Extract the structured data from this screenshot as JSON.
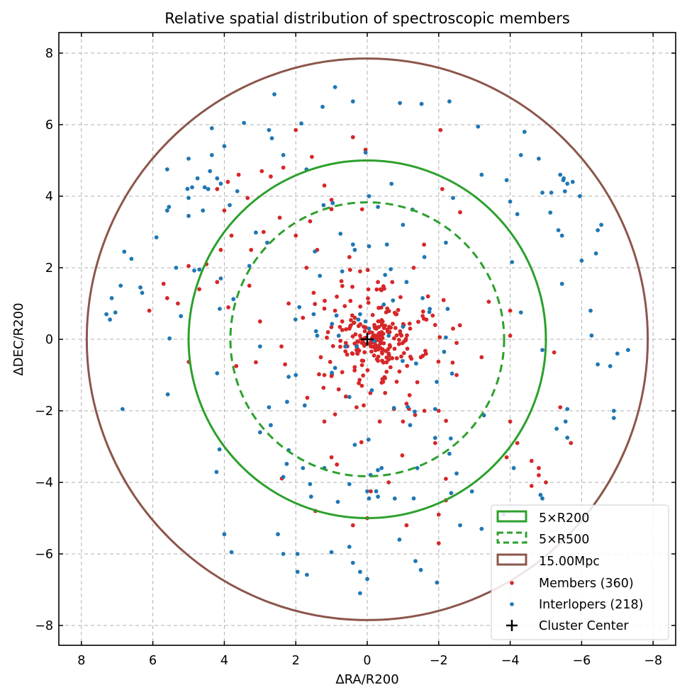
{
  "chart_data": {
    "type": "scatter",
    "title": "Relative spatial distribution of spectroscopic members",
    "xlabel": "ΔRA/R200",
    "ylabel": "ΔDEC/R200",
    "xlim": [
      8.5,
      -8.5
    ],
    "ylim": [
      -8.5,
      8.6
    ],
    "x_ticks": [
      8,
      6,
      4,
      2,
      0,
      -2,
      -4,
      -6,
      -8
    ],
    "x_tick_labels": [
      "8",
      "6",
      "4",
      "2",
      "0",
      "−2",
      "−4",
      "−6",
      "−8"
    ],
    "y_ticks": [
      8,
      6,
      4,
      2,
      0,
      -2,
      -4,
      -6,
      -8
    ],
    "y_tick_labels": [
      "8",
      "6",
      "4",
      "2",
      "0",
      "−2",
      "−4",
      "−6",
      "−8"
    ],
    "grid": true,
    "legend_position": "bottom-right",
    "circles": [
      {
        "label": "5×R200",
        "radius": 5.0,
        "color": "#2ca02c",
        "style": "solid"
      },
      {
        "label": "5×R500",
        "radius": 3.83,
        "color": "#2ca02c",
        "style": "dashed"
      },
      {
        "label": "15.00Mpc",
        "radius": 7.85,
        "color": "#8c564b",
        "style": "solid"
      }
    ],
    "center": {
      "label": "Cluster Center",
      "x": 0,
      "y": 0,
      "marker": "+",
      "color": "#000000"
    },
    "series": [
      {
        "name": "Members (360)",
        "count": 360,
        "color": "#d62728",
        "points": [
          [
            2.0,
            5.85
          ],
          [
            -2.05,
            5.85
          ],
          [
            -2.1,
            4.2
          ],
          [
            -2.6,
            3.55
          ],
          [
            0.05,
            5.3
          ],
          [
            0.4,
            5.65
          ],
          [
            1.55,
            5.1
          ],
          [
            3.6,
            4.6
          ],
          [
            3.9,
            4.4
          ],
          [
            4.2,
            4.2
          ],
          [
            2.7,
            4.55
          ],
          [
            2.35,
            4.8
          ],
          [
            2.95,
            4.7
          ],
          [
            1.2,
            4.3
          ],
          [
            1.0,
            3.9
          ],
          [
            3.35,
            3.95
          ],
          [
            4.0,
            3.6
          ],
          [
            2.45,
            3.4
          ],
          [
            2.9,
            3.0
          ],
          [
            3.25,
            2.5
          ],
          [
            3.8,
            2.9
          ],
          [
            4.1,
            2.5
          ],
          [
            4.5,
            2.1
          ],
          [
            5.0,
            2.05
          ],
          [
            5.6,
            1.15
          ],
          [
            6.1,
            0.8
          ],
          [
            5.3,
            1.0
          ],
          [
            4.7,
            1.4
          ],
          [
            4.2,
            1.6
          ],
          [
            5.7,
            1.55
          ],
          [
            2.3,
            -0.7
          ],
          [
            3.0,
            0.5
          ],
          [
            3.3,
            1.5
          ],
          [
            2.2,
            1.0
          ],
          [
            1.8,
            0.6
          ],
          [
            2.4,
            -0.2
          ],
          [
            -4.0,
            0.8
          ],
          [
            -3.4,
            1.05
          ],
          [
            -4.0,
            0.1
          ],
          [
            -3.2,
            -0.5
          ],
          [
            -3.9,
            -3.3
          ],
          [
            -4.0,
            -2.3
          ],
          [
            -4.6,
            -3.4
          ],
          [
            -4.8,
            -3.6
          ],
          [
            -5.0,
            -4.0
          ],
          [
            -4.6,
            -4.1
          ],
          [
            -5.4,
            -1.9
          ],
          [
            -4.2,
            -2.9
          ],
          [
            -4.8,
            -3.8
          ],
          [
            -5.7,
            -2.9
          ],
          [
            -2.2,
            -4.5
          ],
          [
            -2.0,
            -4.9
          ],
          [
            -2.0,
            -5.7
          ],
          [
            -2.0,
            -2.0
          ],
          [
            -0.35,
            -2.3
          ],
          [
            -0.75,
            -1.95
          ],
          [
            -1.1,
            -1.8
          ],
          [
            0.6,
            -1.6
          ],
          [
            1.3,
            -0.5
          ],
          [
            1.45,
            -4.8
          ],
          [
            -0.1,
            -4.25
          ],
          [
            -0.6,
            -4.0
          ],
          [
            -1.9,
            -2.9
          ],
          [
            -2.5,
            -1.0
          ],
          [
            -2.2,
            -3.9
          ],
          [
            0.4,
            -5.2
          ],
          [
            -1.1,
            -5.2
          ],
          [
            0.0,
            -5.0
          ],
          [
            0.85,
            -3.5
          ],
          [
            1.0,
            -3.3
          ],
          [
            0.15,
            -1.3
          ],
          [
            -0.3,
            -0.6
          ],
          [
            0.5,
            0.3
          ],
          [
            0.2,
            0.1
          ],
          [
            -0.1,
            -0.2
          ],
          [
            0.3,
            -0.3
          ],
          [
            -0.4,
            0.2
          ],
          [
            0.6,
            -0.1
          ],
          [
            0.1,
            0.35
          ],
          [
            -0.2,
            0.4
          ],
          [
            0.35,
            0.6
          ],
          [
            -0.6,
            -0.4
          ],
          [
            0.7,
            0.5
          ],
          [
            0.9,
            0.8
          ],
          [
            1.1,
            0.2
          ],
          [
            -0.8,
            0.7
          ],
          [
            -0.9,
            -0.9
          ],
          [
            1.2,
            -1.0
          ],
          [
            0.8,
            -1.4
          ],
          [
            -1.2,
            0.3
          ],
          [
            1.5,
            1.3
          ],
          [
            -1.5,
            -0.5
          ],
          [
            1.7,
            2.0
          ],
          [
            -0.7,
            1.6
          ],
          [
            0.2,
            1.9
          ],
          [
            -0.3,
            1.6
          ],
          [
            1.4,
            2.5
          ],
          [
            -1.3,
            2.0
          ],
          [
            0.5,
            2.3
          ],
          [
            2.0,
            2.9
          ],
          [
            1.6,
            3.3
          ],
          [
            -1.7,
            1.2
          ],
          [
            -1.9,
            0.4
          ],
          [
            -1.0,
            -2.3
          ],
          [
            0.9,
            -2.1
          ],
          [
            1.2,
            -2.3
          ],
          [
            0.3,
            -1.9
          ],
          [
            -0.5,
            -1.5
          ],
          [
            -1.4,
            -1.2
          ],
          [
            -1.6,
            -2.0
          ],
          [
            -2.4,
            0.3
          ],
          [
            -2.5,
            -0.1
          ]
        ]
      },
      {
        "name": "Interlopers (218)",
        "count": 218,
        "color": "#1f77b4",
        "points": [
          [
            0.9,
            7.05
          ],
          [
            2.6,
            6.85
          ],
          [
            1.25,
            6.5
          ],
          [
            0.4,
            6.65
          ],
          [
            -2.3,
            6.65
          ],
          [
            4.35,
            5.9
          ],
          [
            3.45,
            6.05
          ],
          [
            2.75,
            5.85
          ],
          [
            4.0,
            5.4
          ],
          [
            4.35,
            5.15
          ],
          [
            5.0,
            5.05
          ],
          [
            5.6,
            4.75
          ],
          [
            2.35,
            5.15
          ],
          [
            1.7,
            4.75
          ],
          [
            -4.4,
            5.8
          ],
          [
            -4.3,
            5.15
          ],
          [
            -4.8,
            5.05
          ],
          [
            -5.4,
            4.6
          ],
          [
            -5.5,
            4.5
          ],
          [
            -5.6,
            4.35
          ],
          [
            -5.75,
            4.4
          ],
          [
            -5.95,
            4.0
          ],
          [
            -3.2,
            4.6
          ],
          [
            -3.9,
            4.45
          ],
          [
            -4.0,
            3.85
          ],
          [
            -4.2,
            3.5
          ],
          [
            -2.4,
            3.95
          ],
          [
            6.9,
            1.5
          ],
          [
            7.2,
            0.55
          ],
          [
            7.3,
            0.7
          ],
          [
            7.15,
            1.15
          ],
          [
            7.05,
            0.75
          ],
          [
            6.8,
            2.45
          ],
          [
            6.6,
            2.25
          ],
          [
            6.35,
            1.45
          ],
          [
            6.3,
            1.3
          ],
          [
            5.9,
            2.85
          ],
          [
            5.6,
            3.6
          ],
          [
            5.55,
            3.7
          ],
          [
            5.0,
            3.45
          ],
          [
            5.0,
            3.95
          ],
          [
            4.6,
            3.6
          ],
          [
            4.75,
            4.5
          ],
          [
            4.9,
            4.25
          ],
          [
            4.55,
            4.25
          ],
          [
            4.45,
            4.2
          ],
          [
            4.2,
            4.5
          ],
          [
            4.4,
            4.7
          ],
          [
            4.1,
            4.35
          ],
          [
            3.85,
            3.75
          ],
          [
            5.35,
            2.0
          ],
          [
            4.7,
            1.95
          ],
          [
            4.1,
            1.7
          ],
          [
            2.8,
            2.7
          ],
          [
            3.3,
            2.05
          ],
          [
            6.85,
            -1.95
          ],
          [
            4.2,
            -0.95
          ],
          [
            3.0,
            -0.2
          ],
          [
            2.2,
            -1.05
          ],
          [
            1.75,
            -1.85
          ],
          [
            2.75,
            -1.9
          ],
          [
            3.0,
            -2.6
          ],
          [
            2.7,
            -2.4
          ],
          [
            2.2,
            -3.1
          ],
          [
            1.8,
            -3.6
          ],
          [
            1.6,
            -4.05
          ],
          [
            2.35,
            -3.85
          ],
          [
            1.2,
            -3.6
          ],
          [
            0.35,
            -2.95
          ],
          [
            -0.4,
            -3.6
          ],
          [
            -1.2,
            -2.4
          ],
          [
            -1.9,
            -1.95
          ],
          [
            -2.3,
            -3.2
          ],
          [
            -1.4,
            -3.6
          ],
          [
            -1.3,
            -4.45
          ],
          [
            -0.05,
            -4.45
          ],
          [
            0.0,
            -4.25
          ],
          [
            0.5,
            -4.05
          ],
          [
            -0.3,
            -4.4
          ],
          [
            -0.25,
            -4.25
          ],
          [
            4.0,
            -5.45
          ],
          [
            3.8,
            -5.95
          ],
          [
            2.5,
            -5.45
          ],
          [
            2.35,
            -6.0
          ],
          [
            1.95,
            -6.0
          ],
          [
            1.95,
            -6.5
          ],
          [
            1.0,
            -5.95
          ],
          [
            0.5,
            -5.8
          ],
          [
            0.2,
            -6.5
          ],
          [
            0.0,
            -6.7
          ],
          [
            0.4,
            -6.25
          ],
          [
            0.2,
            -7.1
          ],
          [
            -0.9,
            -5.6
          ],
          [
            -1.35,
            -6.2
          ],
          [
            -1.5,
            -6.45
          ],
          [
            -1.95,
            -6.8
          ],
          [
            -2.35,
            -4.3
          ],
          [
            -2.5,
            -3.75
          ],
          [
            -2.6,
            -5.2
          ],
          [
            -3.2,
            -5.3
          ],
          [
            -4.1,
            -3.6
          ],
          [
            -4.85,
            -4.35
          ],
          [
            -4.9,
            -4.45
          ],
          [
            -5.3,
            -2.5
          ],
          [
            -5.55,
            -2.3
          ],
          [
            -5.6,
            -1.95
          ],
          [
            -5.6,
            -2.75
          ],
          [
            -6.45,
            -0.7
          ],
          [
            -6.8,
            -0.75
          ],
          [
            -6.9,
            -2.0
          ],
          [
            -6.9,
            -2.2
          ],
          [
            -7.0,
            -0.4
          ],
          [
            -7.3,
            -0.3
          ],
          [
            -6.25,
            0.8
          ],
          [
            -6.0,
            2.2
          ],
          [
            -6.4,
            2.4
          ],
          [
            -6.45,
            3.05
          ],
          [
            -6.55,
            3.2
          ],
          [
            -5.35,
            3.05
          ],
          [
            -5.45,
            2.9
          ],
          [
            -5.45,
            1.55
          ],
          [
            -4.9,
            -0.3
          ],
          [
            -4.3,
            0.75
          ],
          [
            -4.9,
            4.1
          ],
          [
            -5.15,
            4.1
          ],
          [
            -2.2,
            2.7
          ],
          [
            -1.6,
            2.3
          ],
          [
            -0.55,
            2.65
          ],
          [
            -0.05,
            2.6
          ],
          [
            0.4,
            2.65
          ],
          [
            0.35,
            2.5
          ],
          [
            0.75,
            2.95
          ],
          [
            -0.3,
            3.7
          ],
          [
            -0.05,
            4.0
          ],
          [
            -1.0,
            3.2
          ],
          [
            0.3,
            -0.2
          ],
          [
            -0.05,
            0.3
          ],
          [
            0.05,
            0.5
          ],
          [
            0.6,
            -0.2
          ],
          [
            0.8,
            0.1
          ],
          [
            1.4,
            0.1
          ],
          [
            1.9,
            0.9
          ],
          [
            2.0,
            -1.0
          ],
          [
            -1.0,
            0.35
          ],
          [
            -1.1,
            1.6
          ],
          [
            -0.5,
            1.8
          ],
          [
            0.7,
            1.9
          ],
          [
            -1.75,
            0.85
          ],
          [
            -1.55,
            1.15
          ],
          [
            -2.15,
            -0.35
          ],
          [
            -2.2,
            0.05
          ],
          [
            -2.25,
            0.85
          ],
          [
            0.9,
            -0.8
          ],
          [
            1.5,
            0.7
          ],
          [
            -0.6,
            0.1
          ],
          [
            0.2,
            0.7
          ],
          [
            0.25,
            0.55
          ],
          [
            -0.2,
            -0.05
          ]
        ]
      }
    ]
  }
}
